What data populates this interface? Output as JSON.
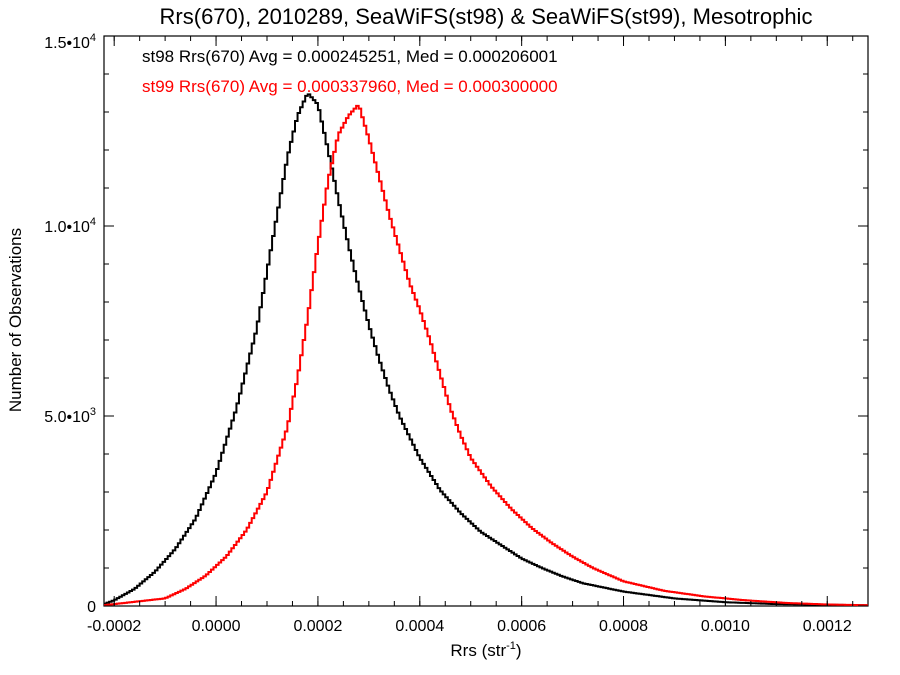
{
  "chart_data": {
    "type": "step",
    "title": "Rrs(670), 2010289, SeaWiFS(st98) & SeaWiFS(st99), Mesotrophic",
    "xlabel": "Rrs (str",
    "xlabel_sup": "-1",
    "xlabel_close": ")",
    "ylabel": "Number of Observations",
    "xlim": [
      -0.00022,
      0.00128
    ],
    "ylim": [
      0,
      15000
    ],
    "grid": false,
    "x_ticks": [
      {
        "v": -0.0002,
        "label": "-0.0002"
      },
      {
        "v": 0.0,
        "label": "0.0000"
      },
      {
        "v": 0.0002,
        "label": "0.0002"
      },
      {
        "v": 0.0004,
        "label": "0.0004"
      },
      {
        "v": 0.0006,
        "label": "0.0006"
      },
      {
        "v": 0.0008,
        "label": "0.0008"
      },
      {
        "v": 0.001,
        "label": "0.0010"
      },
      {
        "v": 0.0012,
        "label": "0.0012"
      }
    ],
    "y_ticks": [
      {
        "v": 0,
        "label": "0",
        "sup": ""
      },
      {
        "v": 5000,
        "label": "5.0•10",
        "sup": "3"
      },
      {
        "v": 10000,
        "label": "1.0•10",
        "sup": "4"
      },
      {
        "v": 15000,
        "label": "1.5•10",
        "sup": "4"
      }
    ],
    "series": [
      {
        "name": "st98",
        "color": "#000000",
        "legend": "st98 Rrs(670) Avg = 0.000245251, Med = 0.000206001",
        "x": [
          -0.00022,
          -0.0002,
          -0.00016,
          -0.00012,
          -8e-05,
          -4e-05,
          0.0,
          4e-05,
          8e-05,
          0.0001,
          0.00012,
          0.00014,
          0.00016,
          0.00018,
          0.0002,
          0.00022,
          0.00024,
          0.00026,
          0.00028,
          0.0003,
          0.00032,
          0.00034,
          0.00036,
          0.0004,
          0.00044,
          0.00048,
          0.00052,
          0.00056,
          0.0006,
          0.00064,
          0.00068,
          0.00072,
          0.0008,
          0.0009,
          0.001,
          0.0011,
          0.00128
        ],
        "y": [
          50,
          150,
          450,
          900,
          1500,
          2300,
          3500,
          5200,
          7300,
          8800,
          10300,
          11800,
          12900,
          13500,
          13200,
          12000,
          10700,
          9500,
          8400,
          7400,
          6500,
          5700,
          5000,
          3900,
          3050,
          2450,
          1950,
          1600,
          1250,
          1000,
          780,
          600,
          380,
          200,
          100,
          50,
          20
        ]
      },
      {
        "name": "st99",
        "color": "#ff0000",
        "legend": "st99 Rrs(670) Avg = 0.000337960, Med = 0.000300000",
        "x": [
          -0.00022,
          -0.0001,
          -6e-05,
          -2e-05,
          2e-05,
          6e-05,
          0.0001,
          0.00014,
          0.00016,
          0.00018,
          0.0002,
          0.00022,
          0.00024,
          0.00026,
          0.00028,
          0.0003,
          0.00032,
          0.00034,
          0.00036,
          0.00038,
          0.0004,
          0.00042,
          0.00044,
          0.00046,
          0.00048,
          0.0005,
          0.00054,
          0.00058,
          0.00062,
          0.00066,
          0.0007,
          0.00074,
          0.0008,
          0.00088,
          0.00096,
          0.00104,
          0.00112,
          0.0012,
          0.00128
        ],
        "y": [
          20,
          200,
          450,
          800,
          1300,
          2000,
          3000,
          4700,
          6000,
          7600,
          9500,
          11200,
          12400,
          12900,
          13200,
          12300,
          11300,
          10300,
          9400,
          8500,
          7800,
          7000,
          6100,
          5200,
          4500,
          3900,
          3150,
          2550,
          2050,
          1650,
          1300,
          1000,
          650,
          400,
          250,
          150,
          80,
          40,
          20
        ]
      }
    ]
  }
}
